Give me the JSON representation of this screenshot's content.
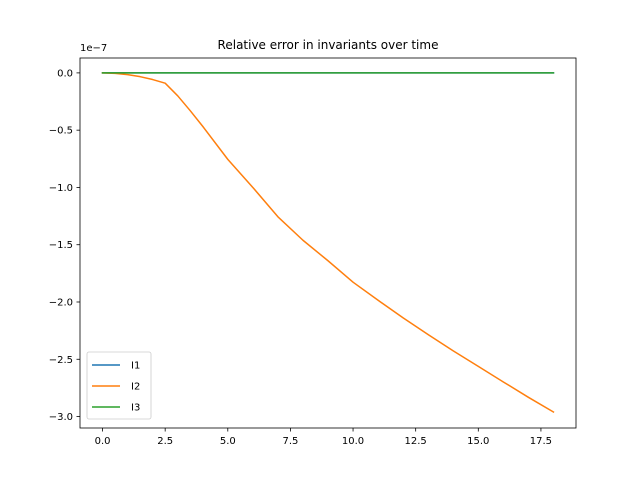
{
  "chart_data": {
    "type": "line",
    "title": "Relative error in invariants over time",
    "xlabel": "",
    "ylabel": "",
    "offset_label": "1e−7",
    "y_scale_factor": 1e-07,
    "xlim": [
      -0.9,
      18.9
    ],
    "ylim": [
      -3.1,
      0.13
    ],
    "x_ticks": [
      0,
      2.5,
      5,
      7.5,
      10,
      12.5,
      15,
      17.5
    ],
    "x_tick_labels": [
      "0.0",
      "2.5",
      "5.0",
      "7.5",
      "10.0",
      "12.5",
      "15.0",
      "17.5"
    ],
    "y_ticks": [
      0,
      -0.5,
      -1,
      -1.5,
      -2,
      -2.5,
      -3
    ],
    "y_tick_labels": [
      "0.0",
      "−0.5",
      "−1.0",
      "−1.5",
      "−2.0",
      "−2.5",
      "−3.0"
    ],
    "grid": false,
    "legend_position": "lower-left",
    "series": [
      {
        "name": "I1",
        "color": "#1f77b4",
        "x": [
          0,
          18
        ],
        "y": [
          0,
          0
        ]
      },
      {
        "name": "I2",
        "color": "#ff7f0e",
        "x": [
          0,
          0.5,
          1,
          1.5,
          2,
          2.5,
          3,
          3.5,
          4,
          5,
          6,
          7,
          8,
          9,
          10,
          11,
          12,
          13,
          14,
          15,
          16,
          17,
          18
        ],
        "y": [
          0,
          -0.004,
          -0.015,
          -0.033,
          -0.058,
          -0.09,
          -0.2,
          -0.33,
          -0.467,
          -0.755,
          -1.0,
          -1.256,
          -1.461,
          -1.64,
          -1.827,
          -1.985,
          -2.139,
          -2.285,
          -2.427,
          -2.562,
          -2.698,
          -2.832,
          -2.96
        ]
      },
      {
        "name": "I3",
        "color": "#2ca02c",
        "x": [
          0,
          18
        ],
        "y": [
          0,
          0
        ]
      }
    ]
  }
}
